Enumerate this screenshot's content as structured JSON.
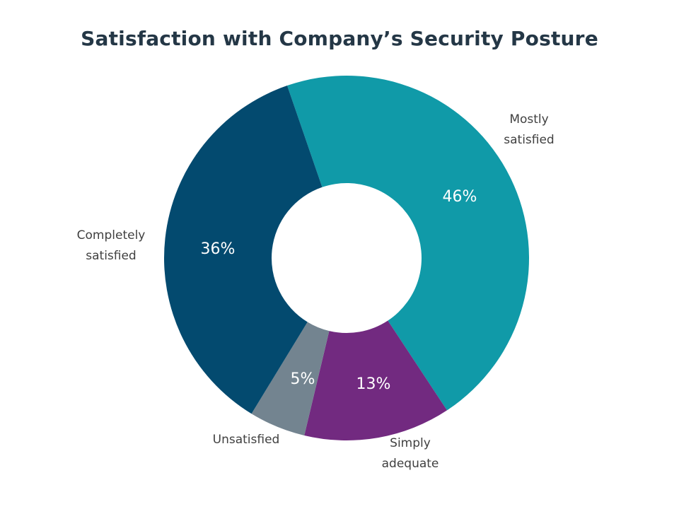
{
  "chart_data": {
    "type": "pie",
    "variant": "donut",
    "title": "Satisfaction with Company’s Security Posture",
    "categories": [
      "Mostly satisfied",
      "Simply adequate",
      "Unsatisfied",
      "Completely satisfied"
    ],
    "category_lines": [
      [
        "Mostly",
        "satisfied"
      ],
      [
        "Simply",
        "adequate"
      ],
      [
        "Unsatisfied"
      ],
      [
        "Completely",
        "satisfied"
      ]
    ],
    "values": [
      46,
      13,
      5,
      36
    ],
    "value_labels": [
      "46%",
      "13%",
      "5%",
      "36%"
    ],
    "colors": [
      "#109AA8",
      "#722A80",
      "#738490",
      "#034A6F"
    ],
    "legend": "none"
  }
}
